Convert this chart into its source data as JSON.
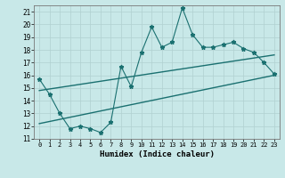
{
  "title": "",
  "xlabel": "Humidex (Indice chaleur)",
  "ylabel": "",
  "bg_color": "#c8e8e8",
  "grid_color": "#b0d0d0",
  "line_color": "#1a7070",
  "xlim": [
    -0.5,
    23.5
  ],
  "ylim": [
    11,
    21.5
  ],
  "x_ticks": [
    0,
    1,
    2,
    3,
    4,
    5,
    6,
    7,
    8,
    9,
    10,
    11,
    12,
    13,
    14,
    15,
    16,
    17,
    18,
    19,
    20,
    21,
    22,
    23
  ],
  "y_ticks": [
    11,
    12,
    13,
    14,
    15,
    16,
    17,
    18,
    19,
    20,
    21
  ],
  "scatter_x": [
    0,
    1,
    2,
    3,
    4,
    5,
    6,
    7,
    8,
    9,
    10,
    11,
    12,
    13,
    14,
    15,
    16,
    17,
    18,
    19,
    20,
    21,
    22,
    23
  ],
  "scatter_y": [
    15.7,
    14.5,
    13.0,
    11.8,
    12.0,
    11.8,
    11.5,
    12.3,
    16.7,
    15.1,
    17.8,
    19.8,
    18.2,
    18.6,
    21.3,
    19.2,
    18.2,
    18.2,
    18.4,
    18.6,
    18.1,
    17.8,
    17.0,
    16.1
  ],
  "trend1_x": [
    0,
    23
  ],
  "trend1_y": [
    14.8,
    17.6
  ],
  "trend2_x": [
    0,
    23
  ],
  "trend2_y": [
    12.2,
    16.0
  ]
}
